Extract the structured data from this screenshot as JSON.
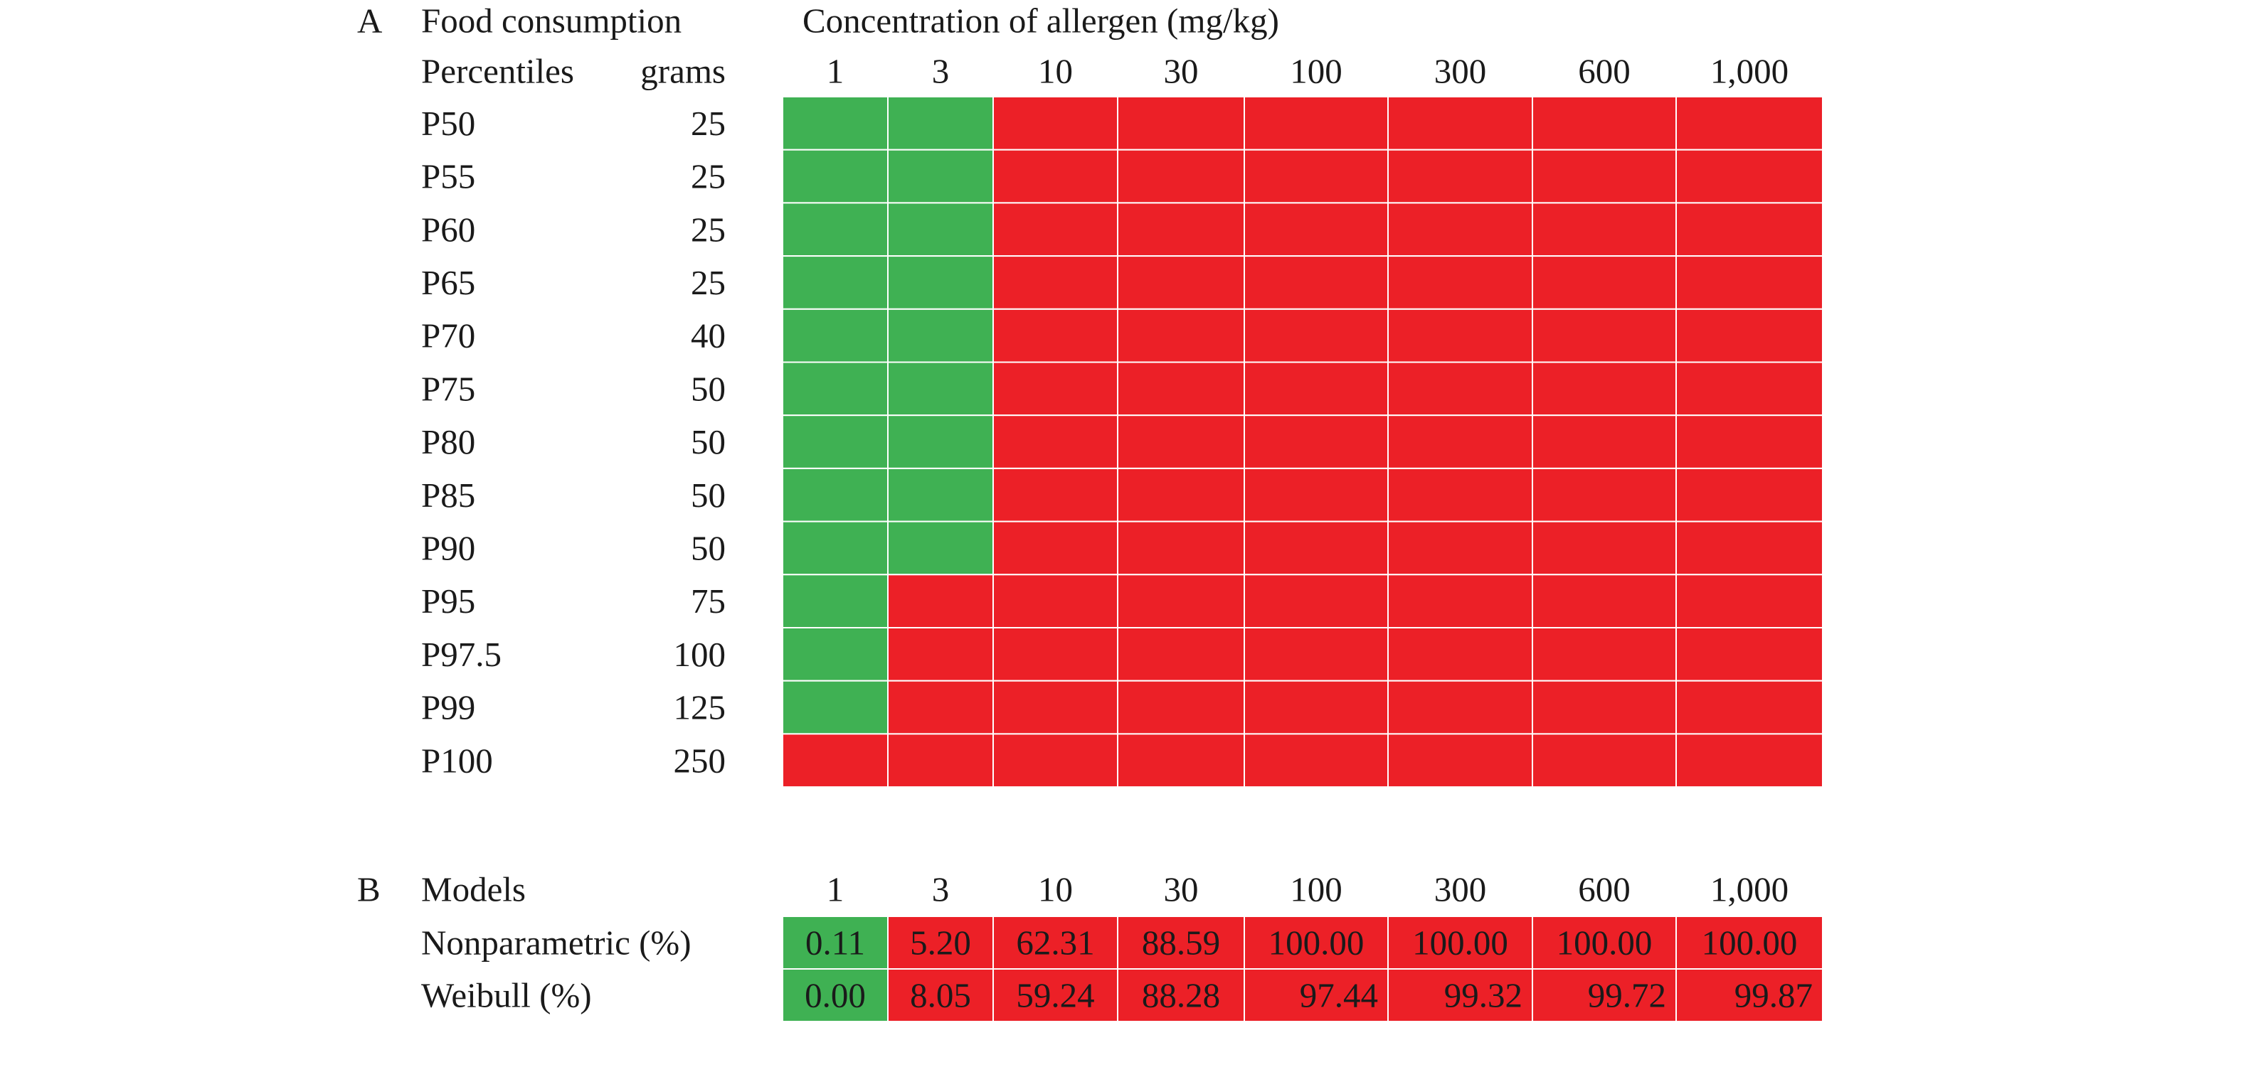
{
  "colors": {
    "safe": "#3fb153",
    "risk": "#ec2027",
    "grid_line": "#ffffff",
    "text": "#1a1a1a"
  },
  "chart_data": [
    {
      "type": "heatmap",
      "panel_label": "A",
      "header_col1": "Food consumption",
      "header_col1_sub": "Percentiles",
      "header_col2_sub": "grams",
      "title": "Concentration of allergen (mg/kg)",
      "categories": [
        "1",
        "3",
        "10",
        "30",
        "100",
        "300",
        "600",
        "1,000"
      ],
      "rows": [
        {
          "percentile": "P50",
          "grams": "25",
          "safe_columns": 2
        },
        {
          "percentile": "P55",
          "grams": "25",
          "safe_columns": 2
        },
        {
          "percentile": "P60",
          "grams": "25",
          "safe_columns": 2
        },
        {
          "percentile": "P65",
          "grams": "25",
          "safe_columns": 2
        },
        {
          "percentile": "P70",
          "grams": "40",
          "safe_columns": 2
        },
        {
          "percentile": "P75",
          "grams": "50",
          "safe_columns": 2
        },
        {
          "percentile": "P80",
          "grams": "50",
          "safe_columns": 2
        },
        {
          "percentile": "P85",
          "grams": "50",
          "safe_columns": 2
        },
        {
          "percentile": "P90",
          "grams": "50",
          "safe_columns": 2
        },
        {
          "percentile": "P95",
          "grams": "75",
          "safe_columns": 1
        },
        {
          "percentile": "P97.5",
          "grams": "100",
          "safe_columns": 1
        },
        {
          "percentile": "P99",
          "grams": "125",
          "safe_columns": 1
        },
        {
          "percentile": "P100",
          "grams": "250",
          "safe_columns": 0
        }
      ]
    },
    {
      "type": "table",
      "panel_label": "B",
      "header_col1": "Models",
      "categories": [
        "1",
        "3",
        "10",
        "30",
        "100",
        "300",
        "600",
        "1,000"
      ],
      "series": [
        {
          "name": "Nonparametric (%)",
          "labels": [
            "0.11",
            "5.20",
            "62.31",
            "88.59",
            "100.00",
            "100.00",
            "100.00",
            "100.00"
          ],
          "values": [
            0.11,
            5.2,
            62.31,
            88.59,
            100.0,
            100.0,
            100.0,
            100.0
          ],
          "align": "center",
          "safe_columns": 1
        },
        {
          "name": "Weibull (%)",
          "labels": [
            "0.00",
            "8.05",
            "59.24",
            "88.28",
            "97.44",
            "99.32",
            "99.72",
            "99.87"
          ],
          "values": [
            0.0,
            8.05,
            59.24,
            88.28,
            97.44,
            99.32,
            99.72,
            99.87
          ],
          "align": "right",
          "safe_columns": 1
        }
      ]
    }
  ]
}
